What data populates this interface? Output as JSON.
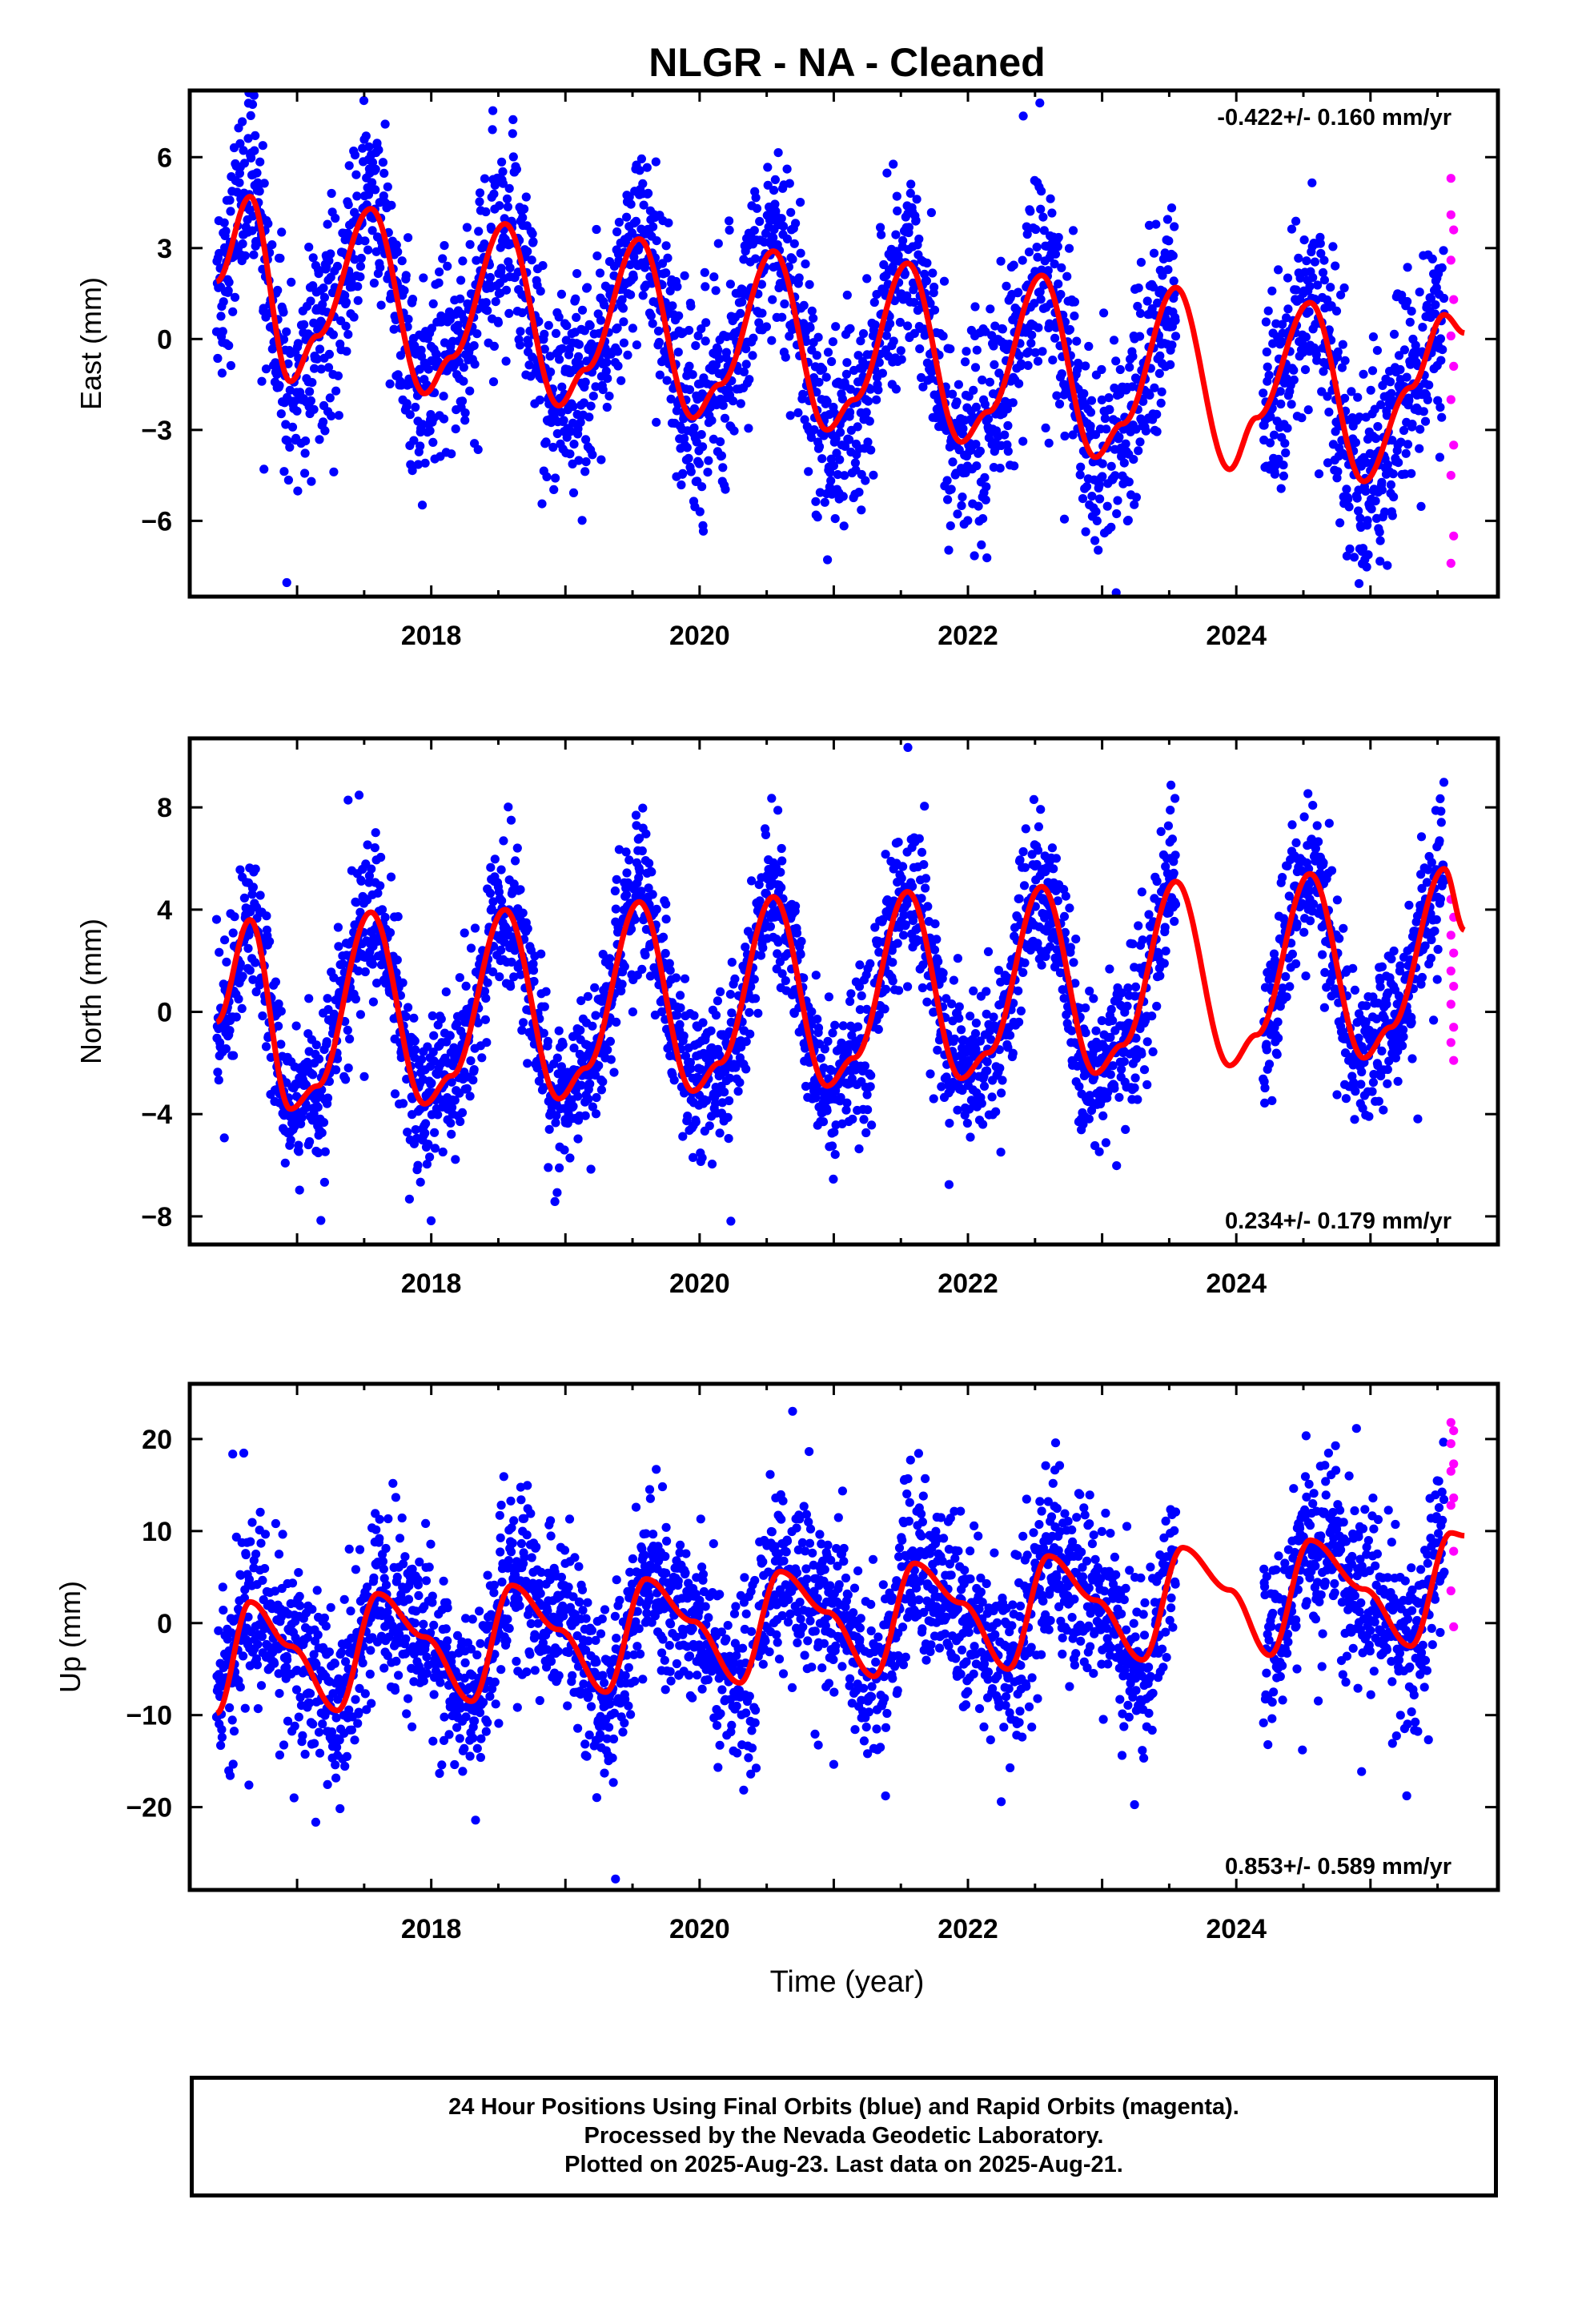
{
  "title": "NLGR  - NA - Cleaned",
  "xlabel": "Time (year)",
  "footer": {
    "line1": "24 Hour Positions Using Final Orbits (blue) and Rapid Orbits (magenta).",
    "line2": "Processed by the Nevada Geodetic Laboratory.",
    "line3": "Plotted on 2025-Aug-23. Last data on 2025-Aug-21."
  },
  "colors": {
    "final_orbits": "#0000ff",
    "rapid_orbits": "#ff00ff",
    "model": "#ff0000"
  },
  "chart_data": [
    {
      "type": "scatter",
      "ylabel": "East (mm)",
      "rate_text": "-0.422+/- 0.160 mm/yr",
      "rate_position": "top-right",
      "xlim": [
        2016.2,
        2025.95
      ],
      "ylim": [
        -8.5,
        8.2
      ],
      "yticks": [
        -6,
        -3,
        0,
        3,
        6
      ],
      "xticks": [
        2018,
        2020,
        2022,
        2024
      ],
      "series": [
        {
          "name": "Final Orbits",
          "points": {
            "start": 2016.4,
            "end": 2025.55,
            "gaps": [
              [
                2023.55,
                2024.2
              ]
            ],
            "spread": 1.6
          }
        },
        {
          "name": "Rapid Orbits",
          "values": [
            [
              2025.6,
              5.3
            ],
            [
              2025.6,
              4.1
            ],
            [
              2025.62,
              3.6
            ],
            [
              2025.6,
              2.6
            ],
            [
              2025.62,
              1.3
            ],
            [
              2025.6,
              0.1
            ],
            [
              2025.62,
              -0.9
            ],
            [
              2025.6,
              -2.0
            ],
            [
              2025.62,
              -3.5
            ],
            [
              2025.6,
              -4.5
            ],
            [
              2025.62,
              -6.5
            ],
            [
              2025.6,
              -7.4
            ]
          ]
        }
      ],
      "model": [
        [
          2016.4,
          1.9
        ],
        [
          2016.65,
          4.7
        ],
        [
          2016.95,
          -1.4
        ],
        [
          2017.15,
          0.1
        ],
        [
          2017.55,
          4.3
        ],
        [
          2017.95,
          -1.8
        ],
        [
          2018.15,
          -0.6
        ],
        [
          2018.55,
          3.8
        ],
        [
          2018.95,
          -2.2
        ],
        [
          2019.15,
          -1.0
        ],
        [
          2019.55,
          3.3
        ],
        [
          2019.95,
          -2.6
        ],
        [
          2020.15,
          -1.5
        ],
        [
          2020.55,
          2.9
        ],
        [
          2020.95,
          -3.0
        ],
        [
          2021.15,
          -2.0
        ],
        [
          2021.55,
          2.5
        ],
        [
          2021.95,
          -3.4
        ],
        [
          2022.15,
          -2.4
        ],
        [
          2022.55,
          2.1
        ],
        [
          2022.95,
          -3.9
        ],
        [
          2023.15,
          -2.8
        ],
        [
          2023.55,
          1.7
        ],
        [
          2023.95,
          -4.3
        ],
        [
          2024.15,
          -2.6
        ],
        [
          2024.55,
          1.2
        ],
        [
          2024.95,
          -4.7
        ],
        [
          2025.3,
          -1.6
        ],
        [
          2025.55,
          0.8
        ],
        [
          2025.7,
          0.2
        ]
      ]
    },
    {
      "type": "scatter",
      "ylabel": "North (mm)",
      "rate_text": "0.234+/- 0.179 mm/yr",
      "rate_position": "bottom-right",
      "xlim": [
        2016.2,
        2025.95
      ],
      "ylim": [
        -9.1,
        10.7
      ],
      "yticks": [
        -8,
        -4,
        0,
        4,
        8
      ],
      "xticks": [
        2018,
        2020,
        2022,
        2024
      ],
      "series": [
        {
          "name": "Final Orbits",
          "points": {
            "start": 2016.4,
            "end": 2025.55,
            "gaps": [
              [
                2023.55,
                2024.2
              ]
            ],
            "spread": 1.4
          }
        },
        {
          "name": "Rapid Orbits",
          "values": [
            [
              2025.6,
              4.4
            ],
            [
              2025.62,
              3.7
            ],
            [
              2025.6,
              3.0
            ],
            [
              2025.62,
              2.3
            ],
            [
              2025.6,
              1.6
            ],
            [
              2025.62,
              1.0
            ],
            [
              2025.6,
              0.3
            ],
            [
              2025.62,
              -0.6
            ],
            [
              2025.6,
              -1.2
            ],
            [
              2025.62,
              -1.9
            ]
          ]
        }
      ],
      "model": [
        [
          2016.4,
          -0.4
        ],
        [
          2016.65,
          3.6
        ],
        [
          2016.95,
          -3.8
        ],
        [
          2017.15,
          -2.9
        ],
        [
          2017.55,
          3.9
        ],
        [
          2017.95,
          -3.6
        ],
        [
          2018.15,
          -2.5
        ],
        [
          2018.55,
          4.0
        ],
        [
          2018.95,
          -3.4
        ],
        [
          2019.15,
          -2.2
        ],
        [
          2019.55,
          4.3
        ],
        [
          2019.95,
          -3.1
        ],
        [
          2020.15,
          -2.0
        ],
        [
          2020.55,
          4.5
        ],
        [
          2020.95,
          -2.9
        ],
        [
          2021.15,
          -1.8
        ],
        [
          2021.55,
          4.7
        ],
        [
          2021.95,
          -2.6
        ],
        [
          2022.15,
          -1.6
        ],
        [
          2022.55,
          4.9
        ],
        [
          2022.95,
          -2.4
        ],
        [
          2023.15,
          -1.3
        ],
        [
          2023.55,
          5.1
        ],
        [
          2023.95,
          -2.1
        ],
        [
          2024.15,
          -0.9
        ],
        [
          2024.55,
          5.4
        ],
        [
          2024.95,
          -1.8
        ],
        [
          2025.15,
          -0.6
        ],
        [
          2025.55,
          5.6
        ],
        [
          2025.7,
          3.2
        ]
      ]
    },
    {
      "type": "scatter",
      "ylabel": "Up (mm)",
      "rate_text": "0.853+/- 0.589 mm/yr",
      "rate_position": "bottom-right",
      "xlim": [
        2016.2,
        2025.95
      ],
      "ylim": [
        -29,
        26
      ],
      "yticks": [
        -20,
        -10,
        0,
        10,
        20
      ],
      "xticks": [
        2018,
        2020,
        2022,
        2024
      ],
      "series": [
        {
          "name": "Final Orbits",
          "points": {
            "start": 2016.4,
            "end": 2025.55,
            "gaps": [
              [
                2023.55,
                2024.2
              ]
            ],
            "spread": 4.5
          }
        },
        {
          "name": "Rapid Orbits",
          "values": [
            [
              2025.6,
              21.8
            ],
            [
              2025.62,
              20.9
            ],
            [
              2025.6,
              19.5
            ],
            [
              2025.62,
              17.3
            ],
            [
              2025.6,
              16.5
            ],
            [
              2025.62,
              13.6
            ],
            [
              2025.6,
              12.8
            ],
            [
              2025.62,
              7.8
            ],
            [
              2025.6,
              3.5
            ],
            [
              2025.62,
              -0.4
            ]
          ]
        }
      ],
      "model": [
        [
          2016.4,
          -9.8
        ],
        [
          2016.65,
          2.3
        ],
        [
          2016.95,
          -2.5
        ],
        [
          2017.3,
          -9.5
        ],
        [
          2017.6,
          3.2
        ],
        [
          2017.95,
          -1.5
        ],
        [
          2018.3,
          -8.5
        ],
        [
          2018.6,
          4.1
        ],
        [
          2018.95,
          -0.7
        ],
        [
          2019.3,
          -7.5
        ],
        [
          2019.6,
          4.8
        ],
        [
          2019.95,
          0.2
        ],
        [
          2020.3,
          -6.5
        ],
        [
          2020.6,
          5.6
        ],
        [
          2020.95,
          1.2
        ],
        [
          2021.3,
          -5.8
        ],
        [
          2021.6,
          6.5
        ],
        [
          2021.95,
          2.2
        ],
        [
          2022.3,
          -5.0
        ],
        [
          2022.6,
          7.3
        ],
        [
          2022.95,
          2.5
        ],
        [
          2023.3,
          -4.0
        ],
        [
          2023.6,
          8.2
        ],
        [
          2023.95,
          3.6
        ],
        [
          2024.25,
          -3.5
        ],
        [
          2024.55,
          9.0
        ],
        [
          2024.95,
          3.7
        ],
        [
          2025.3,
          -2.5
        ],
        [
          2025.6,
          9.8
        ],
        [
          2025.7,
          9.5
        ]
      ]
    }
  ]
}
